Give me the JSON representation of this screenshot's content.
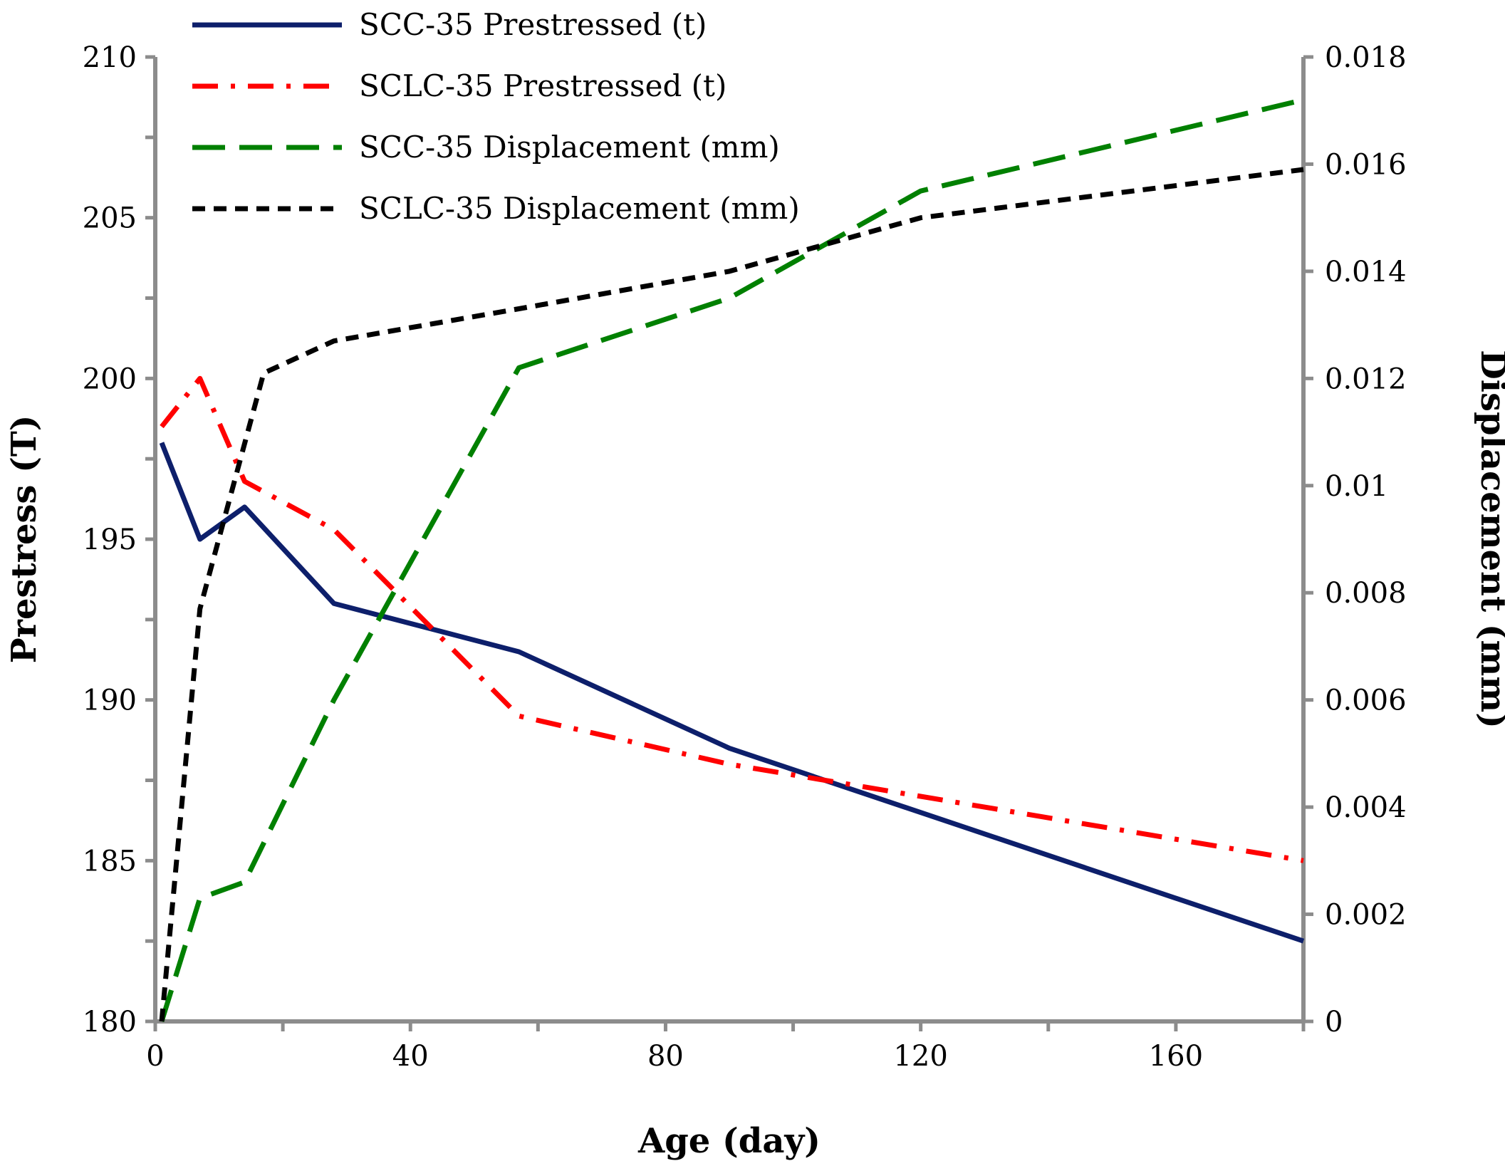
{
  "chart_data": {
    "type": "line",
    "title": "",
    "xlabel": "Age (day)",
    "ylabel": "Prestress (T)",
    "y2label": "Displacement (mm)",
    "xlim": [
      0,
      180
    ],
    "ylim": [
      180,
      210
    ],
    "y2lim": [
      0,
      0.018
    ],
    "x_ticks": [
      0,
      40,
      80,
      120,
      160
    ],
    "x_tick_labels": [
      "0",
      "40",
      "80",
      "120",
      "160"
    ],
    "y_ticks": [
      180,
      185,
      190,
      195,
      200,
      205,
      210
    ],
    "y_tick_labels": [
      "180",
      "185",
      "190",
      "195",
      "200",
      "205",
      "210"
    ],
    "y2_ticks": [
      0,
      0.002,
      0.004,
      0.006,
      0.008,
      0.01,
      0.012,
      0.014,
      0.016,
      0.018
    ],
    "y2_tick_labels": [
      "0",
      "0.002",
      "0.004",
      "0.006",
      "0.008",
      "0.01",
      "0.012",
      "0.014",
      "0.016",
      "0.018"
    ],
    "grid": false,
    "legend_position": "top-left",
    "series": [
      {
        "name": "SCC-35 Prestressed (t)",
        "axis": "left",
        "color": "#0d1f6b",
        "style": "solid",
        "x": [
          1,
          7,
          14,
          28,
          57,
          90,
          180
        ],
        "values": [
          198.0,
          195.0,
          196.0,
          193.0,
          191.5,
          188.5,
          182.5
        ]
      },
      {
        "name": "SCLC-35 Prestressed (t)",
        "axis": "left",
        "color": "#ff0000",
        "style": "dashdot",
        "x": [
          1,
          7,
          14,
          28,
          57,
          90,
          180
        ],
        "values": [
          198.5,
          200.0,
          196.8,
          195.3,
          189.5,
          188.0,
          185.0
        ]
      },
      {
        "name": "SCC-35 Displacement (mm)",
        "axis": "right",
        "color": "#008000",
        "style": "dashed",
        "x": [
          1,
          7,
          14,
          28,
          57,
          90,
          120,
          180
        ],
        "values": [
          0.0,
          0.0023,
          0.0026,
          0.006,
          0.0122,
          0.0135,
          0.0155,
          0.0172
        ]
      },
      {
        "name": "SCLC-35 Displacement (mm)",
        "axis": "right",
        "color": "#000000",
        "style": "shortdash",
        "x": [
          1,
          7,
          17,
          28,
          57,
          90,
          120,
          180
        ],
        "values": [
          0.0,
          0.0077,
          0.0121,
          0.0127,
          0.0133,
          0.014,
          0.015,
          0.0159
        ]
      }
    ]
  }
}
